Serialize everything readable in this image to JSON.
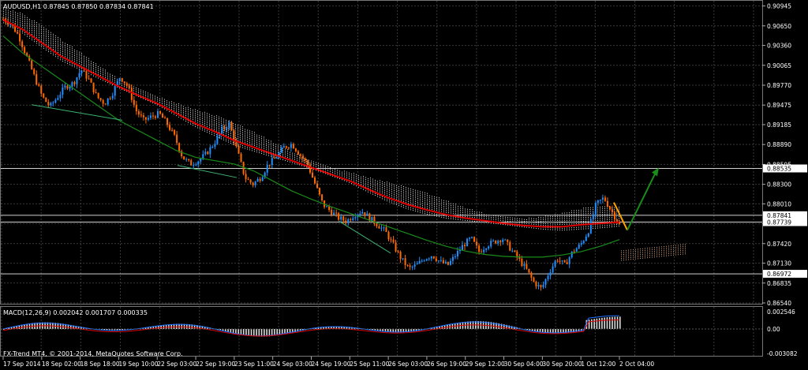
{
  "symbol_header": "AUDUSD,H1  0.87845 0.87850 0.87834 0.87841",
  "macd_header": "MACD(12,26,9) 0.002042 0.001707 0.000335",
  "copyright": "FX-Trend MT4, © 2001-2014, MetaQuotes Software Corp.",
  "colors": {
    "bull": "#1e90ff",
    "bear": "#ff6a00",
    "ma_red": "#e00000",
    "ma_green": "#1a8c1a",
    "cloud": "#dcdcdc",
    "grid": "#3a3a3a",
    "arrow_green": "#1a8c1a",
    "arrow_orange": "#ffa500"
  },
  "price_axis": [
    "0.90945",
    "0.90650",
    "0.90360",
    "0.90065",
    "0.89770",
    "0.89475",
    "0.89185",
    "0.88890",
    "0.88595",
    "0.88300",
    "0.88010",
    "0.87715",
    "0.87420",
    "0.87130",
    "0.86835",
    "0.86540"
  ],
  "price_tags": [
    {
      "id": "level-88535",
      "text": "0.88535",
      "price": 0.88535,
      "bg": "#ffffff"
    },
    {
      "id": "level-87841",
      "text": "0.87841",
      "price": 0.87841,
      "bg": "#ffffff"
    },
    {
      "id": "level-87739",
      "text": "0.87739",
      "price": 0.87739,
      "bg": "#ffffff"
    },
    {
      "id": "level-86972",
      "text": "0.86972",
      "price": 0.86972,
      "bg": "#ffffff"
    }
  ],
  "macd_axis": [
    "0.002546",
    "0.00",
    "-0.003082"
  ],
  "time_axis": [
    "17 Sep 2014",
    "18 Sep 02:00",
    "18 Sep 18:00",
    "19 Sep 10:00",
    "22 Sep 03:00",
    "22 Sep 19:00",
    "23 Sep 11:00",
    "24 Sep 03:00",
    "24 Sep 19:00",
    "25 Sep 11:00",
    "26 Sep 03:00",
    "26 Sep 19:00",
    "29 Sep 12:00",
    "30 Sep 04:00",
    "30 Sep 20:00",
    "1 Oct 12:00",
    "2 Oct 04:00"
  ],
  "chart_data": {
    "type": "candlestick",
    "price_range": [
      0.8654,
      0.9094
    ],
    "close_path": [
      0.9075,
      0.9068,
      0.905,
      0.902,
      0.899,
      0.896,
      0.8945,
      0.896,
      0.8975,
      0.898,
      0.9,
      0.8985,
      0.896,
      0.895,
      0.8965,
      0.899,
      0.8975,
      0.894,
      0.8925,
      0.893,
      0.8935,
      0.892,
      0.89,
      0.887,
      0.886,
      0.8865,
      0.8875,
      0.889,
      0.891,
      0.892,
      0.888,
      0.884,
      0.883,
      0.884,
      0.886,
      0.887,
      0.8885,
      0.889,
      0.8875,
      0.886,
      0.883,
      0.88,
      0.879,
      0.878,
      0.8775,
      0.8785,
      0.879,
      0.878,
      0.877,
      0.876,
      0.874,
      0.872,
      0.8705,
      0.871,
      0.872,
      0.8725,
      0.8715,
      0.871,
      0.8725,
      0.874,
      0.875,
      0.873,
      0.874,
      0.8745,
      0.875,
      0.8735,
      0.872,
      0.8705,
      0.8685,
      0.8675,
      0.87,
      0.872,
      0.871,
      0.873,
      0.874,
      0.876,
      0.88,
      0.881,
      0.879,
      0.877
    ],
    "ma_red": [
      0.9074,
      0.906,
      0.904,
      0.902,
      0.9005,
      0.899,
      0.8975,
      0.8962,
      0.895,
      0.8935,
      0.892,
      0.8908,
      0.8895,
      0.8885,
      0.8875,
      0.8865,
      0.8855,
      0.8845,
      0.8835,
      0.8822,
      0.881,
      0.88,
      0.8792,
      0.8785,
      0.878,
      0.8776,
      0.8772,
      0.8769,
      0.8767,
      0.8767,
      0.877,
      0.8772,
      0.8774
    ],
    "ma_green": [
      0.905,
      0.9025,
      0.9005,
      0.8985,
      0.8965,
      0.8945,
      0.8925,
      0.891,
      0.8895,
      0.888,
      0.887,
      0.8865,
      0.886,
      0.885,
      0.8835,
      0.882,
      0.8808,
      0.8797,
      0.8787,
      0.8777,
      0.8767,
      0.8757,
      0.8747,
      0.8738,
      0.8731,
      0.8726,
      0.8723,
      0.8722,
      0.8722,
      0.8725,
      0.873,
      0.8738,
      0.8748
    ],
    "forecast_up": [
      [
        795,
        0.8762
      ],
      [
        832,
        0.885
      ]
    ],
    "forecast_down_start": [
      778,
      0.8803
    ]
  }
}
